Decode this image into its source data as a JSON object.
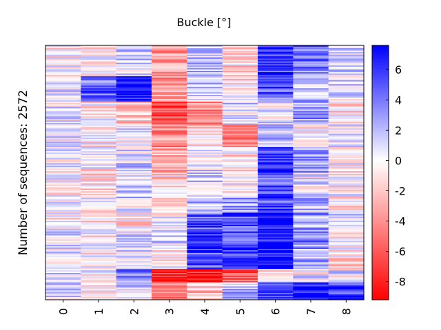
{
  "chart_data": {
    "type": "heatmap",
    "title": "Buckle [°]",
    "ylabel": "Number of sequences: 2572",
    "xlabel": "",
    "x_tick_labels": [
      "0",
      "1",
      "2",
      "3",
      "4",
      "5",
      "6",
      "7",
      "8"
    ],
    "colorbar": {
      "min": -9.2,
      "max": 7.6,
      "tick_values": [
        6,
        4,
        2,
        0,
        -2,
        -4,
        -6,
        -8
      ],
      "tick_labels": [
        "6",
        "4",
        "2",
        "0",
        "-2",
        "-4",
        "-6",
        "-8"
      ],
      "colors": {
        "low": "#ff0000",
        "mid": "#ffffff",
        "high": "#0000ff"
      }
    },
    "row_count": 2572,
    "row_blocks": [
      0,
      0.12,
      0.22,
      0.31,
      0.4,
      0.5,
      0.6,
      0.66,
      0.72,
      0.8,
      0.88,
      0.93,
      1.0
    ],
    "column_block_means": [
      [
        -0.5,
        -0.8,
        1.0,
        -3.5,
        2.0,
        -1.5,
        6.0,
        4.0,
        1.0
      ],
      [
        1.0,
        4.5,
        7.5,
        -3.5,
        1.5,
        -1.0,
        5.0,
        2.0,
        1.0
      ],
      [
        0.5,
        -0.5,
        -2.0,
        -6.0,
        -4.0,
        1.0,
        0.5,
        3.0,
        -1.0
      ],
      [
        0.5,
        -0.5,
        0.5,
        -4.0,
        -1.5,
        -5.0,
        1.5,
        -1.0,
        0.0
      ],
      [
        0.0,
        -0.5,
        1.0,
        -3.0,
        0.5,
        -1.0,
        6.0,
        3.0,
        -0.5
      ],
      [
        -0.5,
        -1.0,
        1.5,
        -1.5,
        1.5,
        -0.5,
        5.0,
        0.5,
        -0.5
      ],
      [
        0.5,
        -0.5,
        0.5,
        -1.0,
        2.0,
        3.0,
        5.5,
        2.0,
        -1.0
      ],
      [
        -0.5,
        -0.8,
        -1.0,
        0.5,
        5.0,
        5.0,
        7.0,
        2.5,
        1.0
      ],
      [
        0.5,
        -0.5,
        1.0,
        1.0,
        6.5,
        5.5,
        7.0,
        3.5,
        0.0
      ],
      [
        0.5,
        -0.5,
        1.0,
        -0.5,
        5.0,
        5.5,
        7.5,
        2.0,
        -1.0
      ],
      [
        1.0,
        -0.5,
        4.0,
        -7.5,
        -8.5,
        -6.0,
        -0.5,
        0.5,
        0.5
      ],
      [
        1.0,
        0.0,
        1.0,
        -5.0,
        -2.0,
        2.0,
        6.5,
        7.5,
        6.0
      ]
    ]
  }
}
